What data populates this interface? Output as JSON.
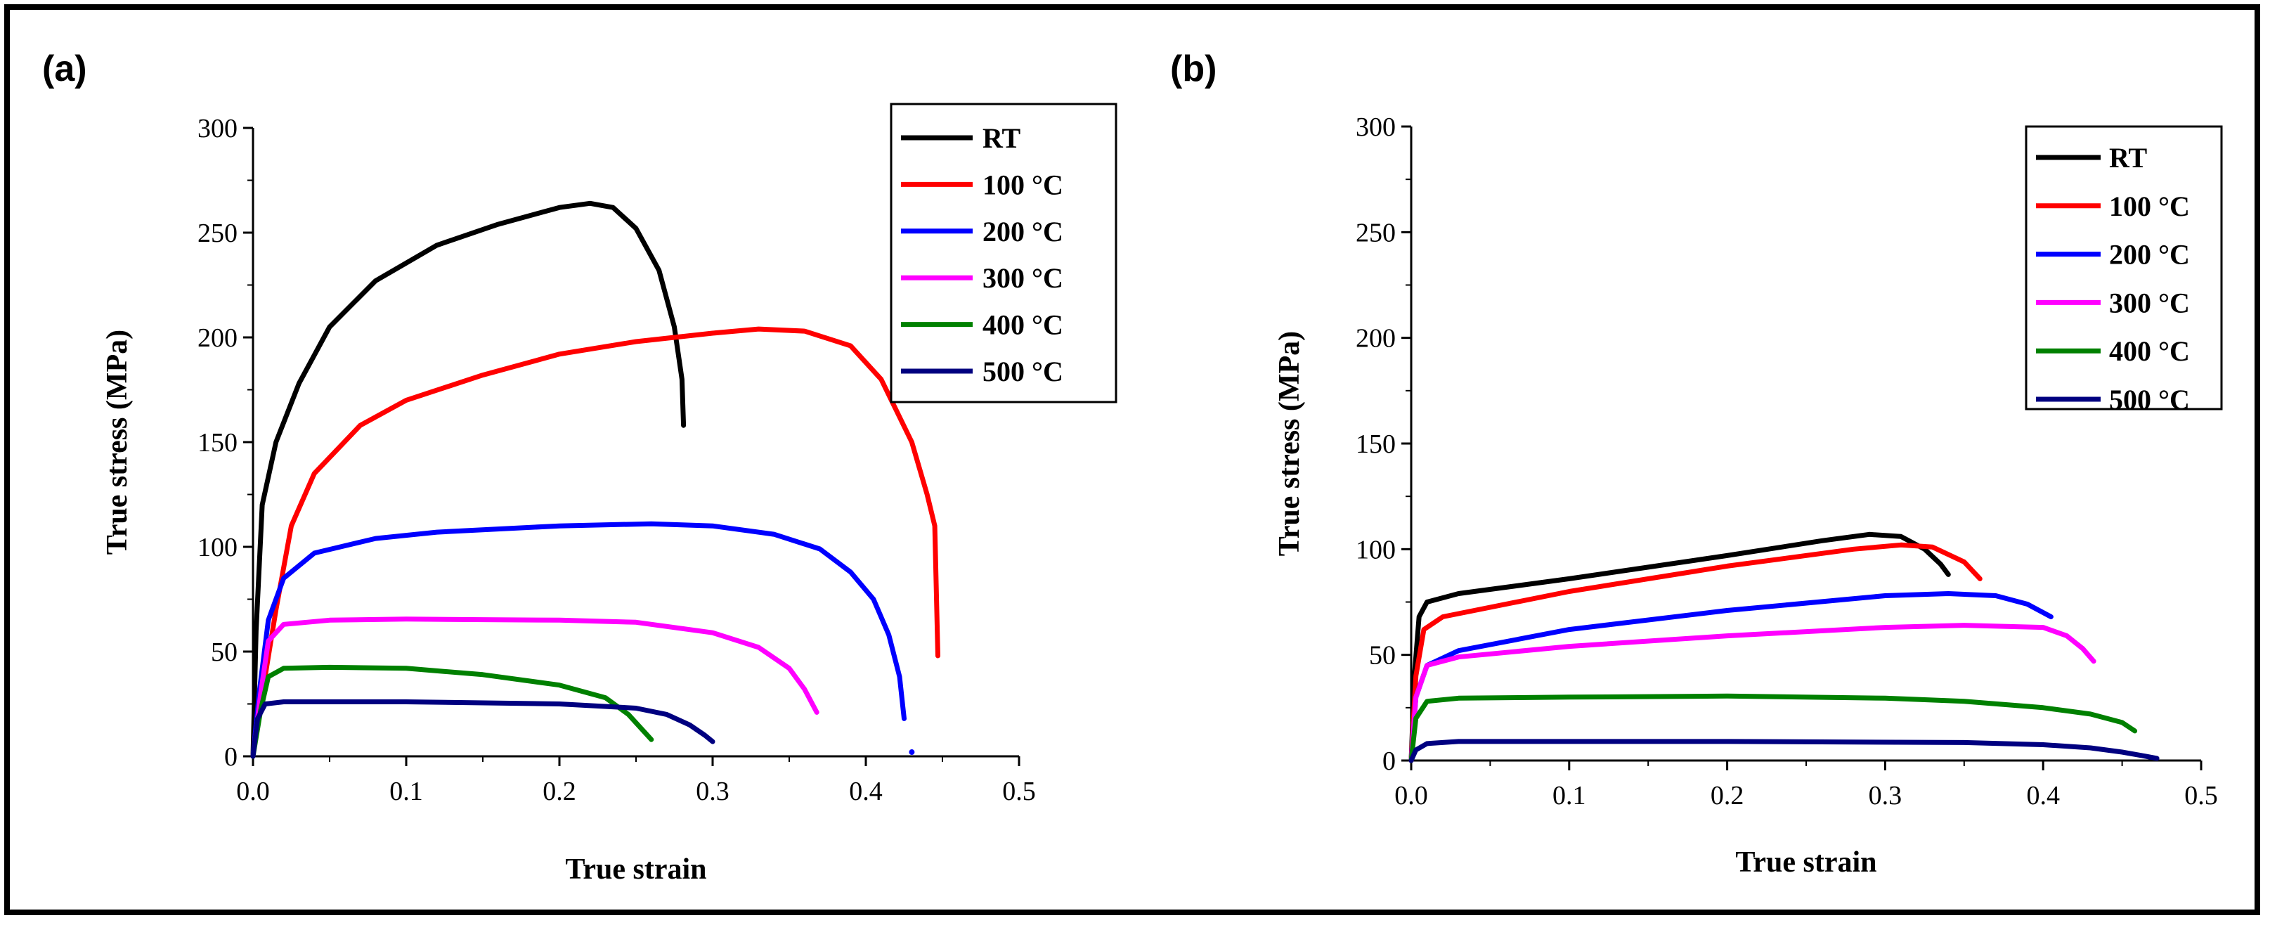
{
  "chart_data": [
    {
      "panel_label": "(a)",
      "type": "line",
      "xlabel": "True strain",
      "ylabel": "True stress (MPa)",
      "xlim": [
        0.0,
        0.5
      ],
      "ylim": [
        0,
        300
      ],
      "xticks": [
        0.0,
        0.1,
        0.2,
        0.3,
        0.4,
        0.5
      ],
      "xtick_labels": [
        "0.0",
        "0.1",
        "0.2",
        "0.3",
        "0.4",
        "0.5"
      ],
      "yticks": [
        0,
        50,
        100,
        150,
        200,
        250,
        300
      ],
      "ytick_labels": [
        "0",
        "50",
        "100",
        "150",
        "200",
        "250",
        "300"
      ],
      "legend_position": "top-right",
      "series": [
        {
          "name": "RT",
          "color": "#000000",
          "points": [
            [
              0,
              0
            ],
            [
              0.002,
              60
            ],
            [
              0.006,
              120
            ],
            [
              0.015,
              150
            ],
            [
              0.03,
              178
            ],
            [
              0.05,
              205
            ],
            [
              0.08,
              227
            ],
            [
              0.12,
              244
            ],
            [
              0.16,
              254
            ],
            [
              0.2,
              262
            ],
            [
              0.22,
              264
            ],
            [
              0.235,
              262
            ],
            [
              0.25,
              252
            ],
            [
              0.265,
              232
            ],
            [
              0.275,
              205
            ],
            [
              0.28,
              180
            ],
            [
              0.281,
              158
            ]
          ]
        },
        {
          "name": "100 °C",
          "color": "#ff0000",
          "points": [
            [
              0,
              0
            ],
            [
              0.005,
              25
            ],
            [
              0.015,
              70
            ],
            [
              0.025,
              110
            ],
            [
              0.04,
              135
            ],
            [
              0.07,
              158
            ],
            [
              0.1,
              170
            ],
            [
              0.15,
              182
            ],
            [
              0.2,
              192
            ],
            [
              0.25,
              198
            ],
            [
              0.3,
              202
            ],
            [
              0.33,
              204
            ],
            [
              0.36,
              203
            ],
            [
              0.39,
              196
            ],
            [
              0.41,
              180
            ],
            [
              0.43,
              150
            ],
            [
              0.44,
              125
            ],
            [
              0.445,
              110
            ],
            [
              0.447,
              48
            ]
          ]
        },
        {
          "name": "200 °C",
          "color": "#0000ff",
          "points": [
            [
              0,
              0
            ],
            [
              0.004,
              30
            ],
            [
              0.01,
              65
            ],
            [
              0.02,
              85
            ],
            [
              0.04,
              97
            ],
            [
              0.08,
              104
            ],
            [
              0.12,
              107
            ],
            [
              0.2,
              110
            ],
            [
              0.26,
              111
            ],
            [
              0.3,
              110
            ],
            [
              0.34,
              106
            ],
            [
              0.37,
              99
            ],
            [
              0.39,
              88
            ],
            [
              0.405,
              75
            ],
            [
              0.415,
              58
            ],
            [
              0.422,
              38
            ],
            [
              0.425,
              18
            ]
          ]
        },
        {
          "name": "300 °C",
          "color": "#ff00ff",
          "points": [
            [
              0,
              0
            ],
            [
              0.005,
              30
            ],
            [
              0.01,
              55
            ],
            [
              0.02,
              63
            ],
            [
              0.05,
              65
            ],
            [
              0.1,
              65.5
            ],
            [
              0.2,
              65
            ],
            [
              0.25,
              64
            ],
            [
              0.3,
              59
            ],
            [
              0.33,
              52
            ],
            [
              0.35,
              42
            ],
            [
              0.36,
              32
            ],
            [
              0.368,
              21
            ]
          ]
        },
        {
          "name": "400 °C",
          "color": "#008000",
          "points": [
            [
              0,
              0
            ],
            [
              0.005,
              22
            ],
            [
              0.01,
              38
            ],
            [
              0.02,
              42
            ],
            [
              0.05,
              42.5
            ],
            [
              0.1,
              42
            ],
            [
              0.15,
              39
            ],
            [
              0.2,
              34
            ],
            [
              0.23,
              28
            ],
            [
              0.245,
              20
            ],
            [
              0.255,
              12
            ],
            [
              0.26,
              8
            ]
          ]
        },
        {
          "name": "500 °C",
          "color": "#000080",
          "points": [
            [
              0,
              0
            ],
            [
              0.003,
              18
            ],
            [
              0.008,
              25
            ],
            [
              0.02,
              26
            ],
            [
              0.1,
              26
            ],
            [
              0.2,
              25
            ],
            [
              0.25,
              23
            ],
            [
              0.27,
              20
            ],
            [
              0.285,
              15
            ],
            [
              0.295,
              10
            ],
            [
              0.3,
              7
            ]
          ]
        }
      ]
    },
    {
      "panel_label": "(b)",
      "type": "line",
      "xlabel": "True strain",
      "ylabel": "True stress (MPa)",
      "xlim": [
        0.0,
        0.5
      ],
      "ylim": [
        0,
        300
      ],
      "xticks": [
        0.0,
        0.1,
        0.2,
        0.3,
        0.4,
        0.5
      ],
      "xtick_labels": [
        "0.0",
        "0.1",
        "0.2",
        "0.3",
        "0.4",
        "0.5"
      ],
      "yticks": [
        0,
        50,
        100,
        150,
        200,
        250,
        300
      ],
      "ytick_labels": [
        "0",
        "50",
        "100",
        "150",
        "200",
        "250",
        "300"
      ],
      "legend_position": "top-right",
      "series": [
        {
          "name": "RT",
          "color": "#000000",
          "points": [
            [
              0,
              0
            ],
            [
              0.002,
              40
            ],
            [
              0.005,
              68
            ],
            [
              0.01,
              75
            ],
            [
              0.03,
              79
            ],
            [
              0.1,
              86
            ],
            [
              0.2,
              97
            ],
            [
              0.26,
              104
            ],
            [
              0.29,
              107
            ],
            [
              0.31,
              106
            ],
            [
              0.325,
              100
            ],
            [
              0.335,
              93
            ],
            [
              0.34,
              88
            ]
          ]
        },
        {
          "name": "100 °C",
          "color": "#ff0000",
          "points": [
            [
              0,
              0
            ],
            [
              0.003,
              40
            ],
            [
              0.008,
              62
            ],
            [
              0.02,
              68
            ],
            [
              0.1,
              80
            ],
            [
              0.2,
              92
            ],
            [
              0.28,
              100
            ],
            [
              0.31,
              102
            ],
            [
              0.33,
              101
            ],
            [
              0.35,
              94
            ],
            [
              0.36,
              86
            ]
          ]
        },
        {
          "name": "200 °C",
          "color": "#0000ff",
          "points": [
            [
              0,
              0
            ],
            [
              0.003,
              30
            ],
            [
              0.01,
              45
            ],
            [
              0.03,
              52
            ],
            [
              0.1,
              62
            ],
            [
              0.2,
              71
            ],
            [
              0.3,
              78
            ],
            [
              0.34,
              79
            ],
            [
              0.37,
              78
            ],
            [
              0.39,
              74
            ],
            [
              0.405,
              68
            ]
          ]
        },
        {
          "name": "300 °C",
          "color": "#ff00ff",
          "points": [
            [
              0,
              0
            ],
            [
              0.003,
              30
            ],
            [
              0.01,
              45
            ],
            [
              0.03,
              49
            ],
            [
              0.1,
              54
            ],
            [
              0.2,
              59
            ],
            [
              0.3,
              63
            ],
            [
              0.35,
              64
            ],
            [
              0.4,
              63
            ],
            [
              0.415,
              59
            ],
            [
              0.425,
              53
            ],
            [
              0.432,
              47
            ]
          ]
        },
        {
          "name": "400 °C",
          "color": "#008000",
          "points": [
            [
              0,
              0
            ],
            [
              0.003,
              20
            ],
            [
              0.01,
              28
            ],
            [
              0.03,
              29.5
            ],
            [
              0.1,
              30
            ],
            [
              0.2,
              30.5
            ],
            [
              0.3,
              29.5
            ],
            [
              0.35,
              28
            ],
            [
              0.4,
              25
            ],
            [
              0.43,
              22
            ],
            [
              0.45,
              18
            ],
            [
              0.458,
              14
            ]
          ]
        },
        {
          "name": "500 °C",
          "color": "#000080",
          "points": [
            [
              0,
              0
            ],
            [
              0.003,
              5
            ],
            [
              0.01,
              8
            ],
            [
              0.03,
              9
            ],
            [
              0.2,
              9
            ],
            [
              0.35,
              8.5
            ],
            [
              0.4,
              7.5
            ],
            [
              0.43,
              6
            ],
            [
              0.45,
              4
            ],
            [
              0.465,
              2
            ],
            [
              0.472,
              1
            ]
          ]
        }
      ]
    }
  ]
}
